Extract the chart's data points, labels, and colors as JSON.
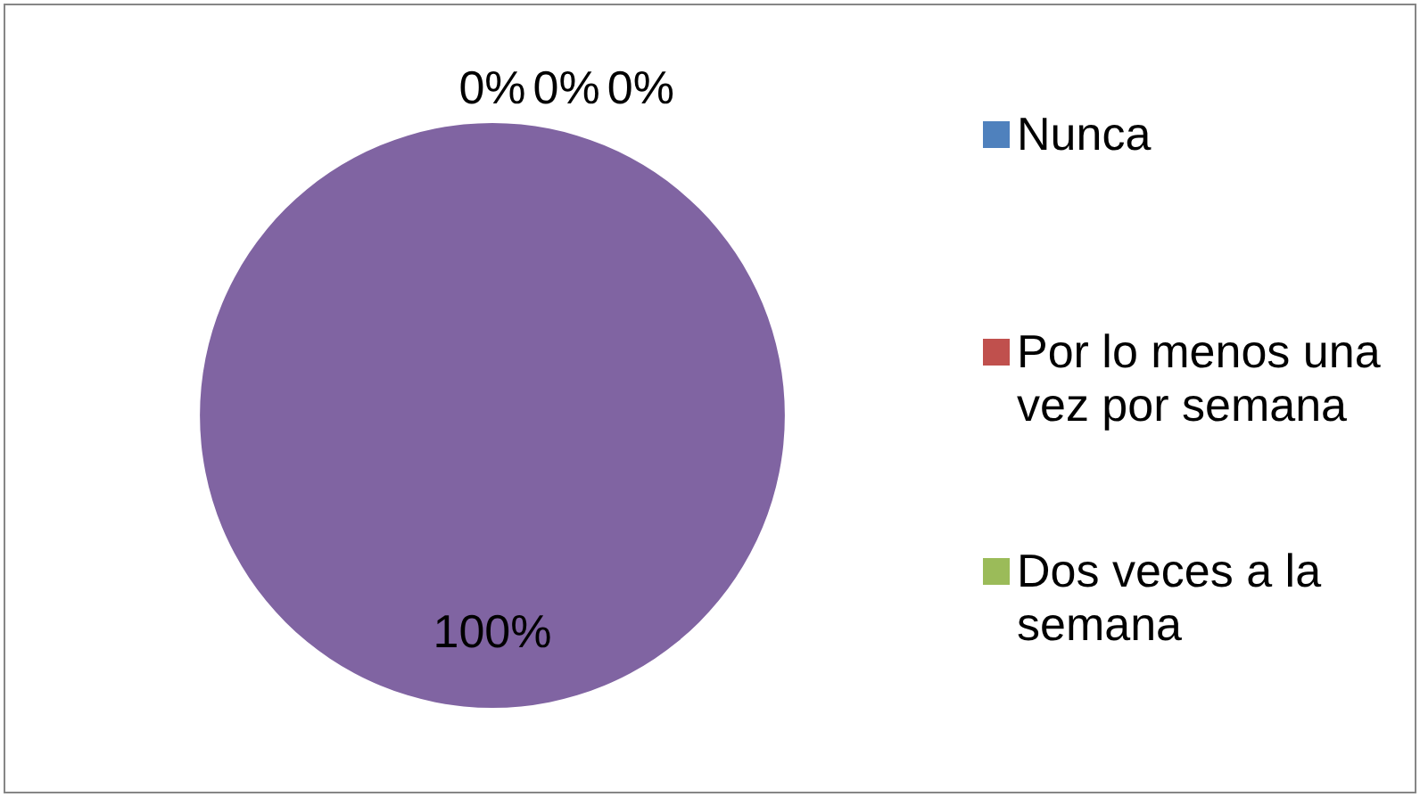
{
  "chart_data": {
    "type": "pie",
    "categories": [
      "Nunca",
      "Por lo menos una vez por semana",
      "Dos veces a la semana",
      null
    ],
    "values": [
      0,
      0,
      0,
      100
    ],
    "value_labels": [
      "0%",
      "0%",
      "0%",
      "100%"
    ],
    "colors": [
      "#4f81bd",
      "#c0504d",
      "#9bbb59",
      "#8064a2"
    ],
    "legend": "right"
  }
}
